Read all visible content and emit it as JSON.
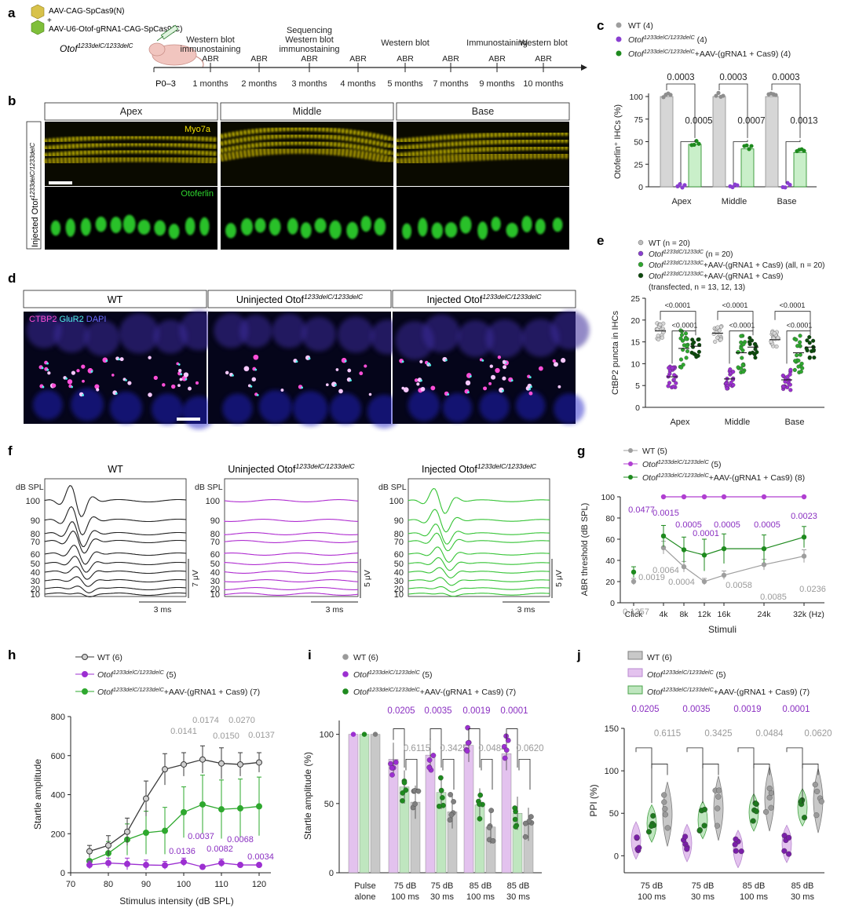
{
  "panel_labels": {
    "a": "a",
    "b": "b",
    "c": "c",
    "d": "d",
    "e": "e",
    "f": "f",
    "g": "g",
    "h": "h",
    "i": "i",
    "j": "j"
  },
  "panel_a": {
    "vector1": "AAV-CAG-SpCas9(N)",
    "plus": "+",
    "vector2": "AAV-U6-Otof-gRNA1-CAG-SpCas9(C)",
    "mouse_label": "Otof",
    "mouse_label_sup": "1233delC/1233delC",
    "start": "P0–3",
    "events": [
      {
        "top": "Western blot",
        "top2": "immunostaining",
        "mid": "ABR",
        "bottom": "1 months"
      },
      {
        "top": "",
        "top2": "",
        "mid": "ABR",
        "bottom": "2 months"
      },
      {
        "top": "Sequencing",
        "top2": "Western blot",
        "top3": "immunostaining",
        "mid": "ABR",
        "bottom": "3 months"
      },
      {
        "top": "",
        "top2": "",
        "mid": "ABR",
        "bottom": "4 months"
      },
      {
        "top": "Western blot",
        "top2": "",
        "mid": "ABR",
        "bottom": "5 months"
      },
      {
        "top": "",
        "top2": "",
        "mid": "ABR",
        "bottom": "7 months"
      },
      {
        "top": "Immunostaining",
        "top2": "",
        "mid": "ABR",
        "bottom": "9 months"
      },
      {
        "top": "Western blot",
        "top2": "",
        "mid": "ABR",
        "bottom": "10 months"
      }
    ]
  },
  "panel_b": {
    "side_label": "Injected Otof",
    "side_sup": "1233delC/1233delC",
    "columns": [
      "Apex",
      "Middle",
      "Base"
    ],
    "stain1": "Myo7a",
    "stain2": "Otoferlin"
  },
  "panel_c": {
    "legend": [
      {
        "label": "WT (4)",
        "color": "#9e9e9e"
      },
      {
        "label": "Otof",
        "sup": "1233delC/1233delC",
        "suffix": " (4)",
        "color": "#8a3fd1"
      },
      {
        "label": "Otof",
        "sup": "1233delC/1233delC",
        "suffix": "+AAV-(gRNA1 + Cas9) (4)",
        "color": "#1e8a1e"
      }
    ],
    "ylabel": "Otoferlin⁺ IHCs (%)",
    "yticks": [
      "0",
      "25",
      "50",
      "75",
      "100"
    ],
    "ylim": [
      0,
      100
    ],
    "categories": [
      "Apex",
      "Middle",
      "Base"
    ],
    "pvalues_top": [
      "0.0003",
      "0.0003",
      "0.0003"
    ],
    "pvalues_bottom": [
      "0.0005",
      "0.0007",
      "0.0013"
    ]
  },
  "panel_d": {
    "columns": [
      "WT",
      "Uninjected Otof",
      "Injected Otof"
    ],
    "col_sup": "1233delC/1233delC",
    "stain1": "CTBP2",
    "stain2": "GluR2",
    "stain3": "DAPI"
  },
  "panel_e": {
    "legend": [
      {
        "label": "WT (n = 20)",
        "color": "#bdbdbd"
      },
      {
        "label": "Otof",
        "sup": "1233dC/1233dC",
        "suffix": " (n = 20)",
        "color": "#8a3fd1"
      },
      {
        "label": "Otof",
        "sup": "1233dC/1233dC",
        "suffix": "+AAV-(gRNA1 + Cas9) (all, n = 20)",
        "color": "#2ea82e"
      },
      {
        "label": "Otof",
        "sup": "1233dC/1233dC",
        "suffix": "+AAV-(gRNA1 + Cas9)",
        "color": "#0b4a0b"
      }
    ],
    "legend_extra": "(transfected, n = 13, 12, 13)",
    "ylabel": "CtBP2 puncta in IHCs",
    "yticks": [
      "0",
      "5",
      "10",
      "15",
      "20",
      "25"
    ],
    "ylim": [
      0,
      25
    ],
    "categories": [
      "Apex",
      "Middle",
      "Base"
    ],
    "p_top": "<0.0001",
    "p_bottom": "<0.0001"
  },
  "panel_f": {
    "titles": [
      "WT",
      "Uninjected Otof",
      "Injected Otof"
    ],
    "title_sup": "1233delC/1233delC",
    "unit": "dB SPL",
    "levels": [
      "100",
      "90",
      "80",
      "70",
      "60",
      "50",
      "40",
      "30",
      "20",
      "10"
    ],
    "scale_time": "3 ms",
    "scale_volt": [
      "7 μV",
      "5 μV",
      "5 μV"
    ]
  },
  "chart_data": [
    {
      "type": "line",
      "panel": "g",
      "ylabel": "ABR threshold (dB SPL)",
      "xlabel": "Stimuli",
      "categories": [
        "Click",
        "4k",
        "8k",
        "12k",
        "16k",
        "24k",
        "32k (Hz)"
      ],
      "ylim": [
        0,
        100
      ],
      "yticks": [
        "0",
        "20",
        "40",
        "60",
        "80",
        "100"
      ],
      "series": [
        {
          "name": "WT (5)",
          "color": "#9e9e9e",
          "values": [
            20,
            52,
            34,
            20,
            26,
            36,
            44
          ]
        },
        {
          "name": "Otof 1233delC/1233delC (5)",
          "color": "#b03fd1",
          "values": [
            null,
            100,
            100,
            100,
            100,
            100,
            100
          ]
        },
        {
          "name": "Otof 1233delC/1233delC+AAV-(gRNA1 + Cas9) (8)",
          "color": "#1e8a1e",
          "values": [
            29,
            63,
            50,
            45,
            51,
            51,
            62
          ]
        }
      ],
      "pvalues_purple": [
        "0.0477",
        "0.0015",
        "0.0005",
        "0.0001",
        "0.0005",
        "0.0005",
        "0.0023"
      ],
      "pvalues_gray": [
        "0.1357",
        "0.0019",
        "0.0064",
        "0.0004",
        "0.0058",
        "0.0085",
        "0.0236"
      ]
    },
    {
      "type": "line",
      "panel": "h",
      "ylabel": "Startle amplitude",
      "xlabel": "Stimulus intensity (dB SPL)",
      "x": [
        75,
        80,
        85,
        90,
        95,
        100,
        105,
        110,
        115,
        120
      ],
      "xlim": [
        70,
        120
      ],
      "xticks": [
        "70",
        "80",
        "90",
        "100",
        "110",
        "120"
      ],
      "ylim": [
        0,
        800
      ],
      "yticks": [
        "0",
        "200",
        "400",
        "600",
        "800"
      ],
      "series": [
        {
          "name": "WT (6)",
          "color": "#3a3a3a",
          "values": [
            110,
            140,
            210,
            380,
            530,
            555,
            580,
            560,
            555,
            565
          ]
        },
        {
          "name": "Otof 1233delC/1233delC (5)",
          "color": "#9c2fd1",
          "values": [
            40,
            50,
            45,
            40,
            38,
            55,
            30,
            50,
            40,
            40
          ]
        },
        {
          "name": "Otof 1233delC/1233delC+AAV-(gRNA1 + Cas9) (7)",
          "color": "#2ea82e",
          "values": [
            60,
            100,
            170,
            205,
            215,
            310,
            350,
            325,
            330,
            340
          ]
        }
      ],
      "pvalues_gray": [
        "0.0141",
        "0.0174",
        "0.0150",
        "0.0270",
        "0.0137"
      ],
      "pvalues_purple": [
        "0.0136",
        "0.0037",
        "0.0082",
        "0.0068",
        "0.0034"
      ]
    },
    {
      "type": "bar",
      "panel": "i",
      "ylabel": "Startle amplitude (%)",
      "categories": [
        "Pulse alone",
        "75 dB 100 ms",
        "75 dB 30 ms",
        "85 dB 100 ms",
        "85 dB 30 ms"
      ],
      "ylim": [
        0,
        110
      ],
      "yticks": [
        "0",
        "50",
        "100"
      ],
      "series": [
        {
          "name": "WT (6)",
          "color": "#c8c8c8",
          "values": [
            100,
            51,
            44,
            33,
            35
          ]
        },
        {
          "name": "Otof 1233delC/1233delC (5)",
          "color": "#e3c2ee",
          "values": [
            100,
            82,
            85,
            92,
            86
          ]
        },
        {
          "name": "Otof 1233delC/1233delC+AAV-(gRNA1 + Cas9) (7)",
          "color": "#bfe6bf",
          "values": [
            100,
            62,
            58,
            49,
            43
          ]
        }
      ],
      "pvalues_purple": [
        "0.0205",
        "0.0035",
        "0.0019",
        "0.0001"
      ],
      "pvalues_gray": [
        "0.6115",
        "0.3425",
        "0.0484",
        "0.0620"
      ]
    },
    {
      "type": "violin",
      "panel": "j",
      "ylabel": "PPI (%)",
      "categories": [
        "75 dB 100 ms",
        "75 dB 30 ms",
        "85 dB 100 ms",
        "85 dB 30 ms"
      ],
      "ylim": [
        -20,
        150
      ],
      "yticks": [
        "0",
        "50",
        "100",
        "150"
      ],
      "series": [
        {
          "name": "WT (6)",
          "color": "#c8c8c8",
          "values": [
            49,
            56,
            67,
            65
          ]
        },
        {
          "name": "Otof 1233delC/1233delC (5)",
          "color": "#e3c2ee",
          "values": [
            18,
            15,
            8,
            14
          ]
        },
        {
          "name": "Otof 1233delC/1233delC+AAV-(gRNA1 + Cas9) (7)",
          "color": "#bfe6bf",
          "values": [
            38,
            42,
            51,
            57
          ]
        }
      ],
      "pvalues_purple": [
        "0.0205",
        "0.0035",
        "0.0019",
        "0.0001"
      ],
      "pvalues_gray": [
        "0.6115",
        "0.3425",
        "0.0484",
        "0.0620"
      ]
    }
  ]
}
